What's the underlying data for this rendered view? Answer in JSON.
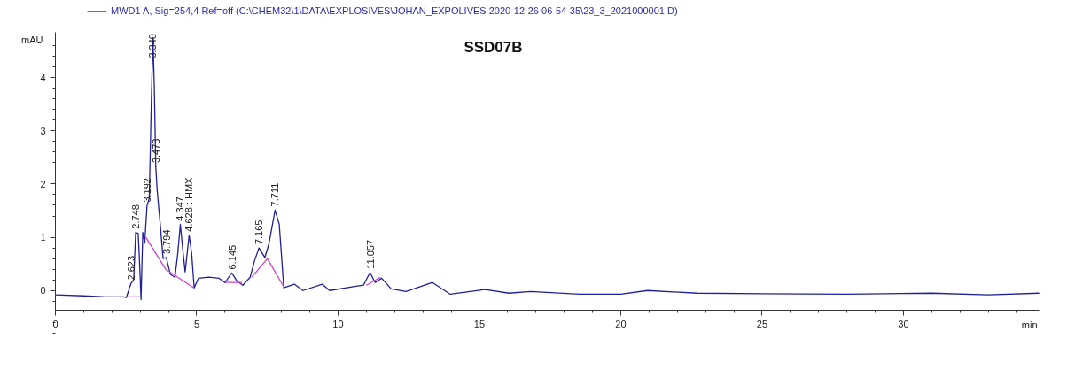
{
  "chart_data": {
    "type": "line",
    "title": "SSD07B",
    "xlabel": "min",
    "ylabel": "mAU",
    "legend": "top",
    "grid": false,
    "marker": "none",
    "line_style": "solid",
    "xlim": [
      0,
      34.8
    ],
    "ylim": [
      -0.37,
      4.85
    ],
    "xticks": [
      0,
      5,
      10,
      15,
      20,
      25,
      30
    ],
    "yticks": [
      0,
      1,
      2,
      3,
      4
    ],
    "series": [
      {
        "name": "MWD1 A, Sig=254,4 Ref=off (C:\\CHEM32\\1\\DATA\\EXPLOSIVES\\JOHAN_EXPOLIVES 2020-12-26 06-54-35\\23_3_2021000001.D)",
        "color": "#1f1f9c",
        "x": [
          0,
          1,
          1.78,
          2.4,
          2.51,
          2.67,
          2.77,
          2.84,
          2.93,
          2.98,
          3.03,
          3.09,
          3.16,
          3.24,
          3.32,
          3.39,
          3.45,
          3.5,
          3.55,
          3.6,
          3.71,
          3.81,
          3.92,
          4.07,
          4.23,
          4.33,
          4.42,
          4.51,
          4.59,
          4.73,
          4.82,
          4.91,
          5.06,
          5.43,
          5.79,
          6.0,
          6.24,
          6.42,
          6.63,
          6.89,
          7.04,
          7.2,
          7.41,
          7.56,
          7.77,
          7.92,
          8.08,
          8.45,
          8.76,
          9.44,
          9.7,
          10.64,
          10.9,
          11.13,
          11.31,
          11.54,
          11.88,
          12.4,
          13.34,
          13.97,
          15.2,
          16.05,
          16.8,
          18.55,
          20.0,
          20.95,
          22.7,
          25,
          28,
          31,
          33,
          34.8
        ],
        "values": [
          -0.08,
          -0.1,
          -0.12,
          -0.12,
          -0.13,
          0.13,
          0.2,
          1.09,
          1.07,
          0.5,
          -0.17,
          1.09,
          0.89,
          1.59,
          1.73,
          3.46,
          4.75,
          3.8,
          2.33,
          1.88,
          1.24,
          0.6,
          0.62,
          0.3,
          0.25,
          0.7,
          1.24,
          0.75,
          0.35,
          1.04,
          0.7,
          0.05,
          0.23,
          0.25,
          0.23,
          0.15,
          0.33,
          0.18,
          0.1,
          0.25,
          0.55,
          0.8,
          0.62,
          0.89,
          1.51,
          1.24,
          0.05,
          0.12,
          0.0,
          0.12,
          0.0,
          0.08,
          0.1,
          0.34,
          0.15,
          0.23,
          0.03,
          -0.02,
          0.15,
          -0.07,
          0.02,
          -0.05,
          -0.02,
          -0.07,
          -0.07,
          0.0,
          -0.05,
          -0.06,
          -0.07,
          -0.05,
          -0.08,
          -0.05
        ]
      },
      {
        "color": "#d040d0",
        "x": [
          2.55,
          3.0,
          null,
          3.2,
          3.9,
          4.9,
          null,
          6.0,
          6.6,
          null,
          6.95,
          7.5,
          8.1,
          null,
          11.0,
          11.5
        ],
        "values": [
          -0.12,
          -0.12,
          null,
          1.0,
          0.4,
          0.05,
          null,
          0.15,
          0.15,
          null,
          0.25,
          0.6,
          0.05,
          null,
          0.1,
          0.25
        ]
      }
    ],
    "annotations": [
      {
        "text": "2.623",
        "x": 2.67,
        "y": 0.13
      },
      {
        "text": "2.748",
        "x": 2.84,
        "y": 1.09
      },
      {
        "text": "3.192",
        "x": 3.24,
        "y": 1.59
      },
      {
        "text": "3.340",
        "x": 3.43,
        "y": 4.3
      },
      {
        "text": "3.473",
        "x": 3.55,
        "y": 2.33
      },
      {
        "text": "3.794",
        "x": 3.92,
        "y": 0.62
      },
      {
        "text": "4.347",
        "x": 4.42,
        "y": 1.24
      },
      {
        "text": "4.628 : HMX",
        "x": 4.73,
        "y": 1.04
      },
      {
        "text": "6.145",
        "x": 6.24,
        "y": 0.33
      },
      {
        "text": "7.165",
        "x": 7.2,
        "y": 0.8
      },
      {
        "text": "7.711",
        "x": 7.77,
        "y": 1.51
      },
      {
        "text": "11.057",
        "x": 11.13,
        "y": 0.34
      }
    ]
  }
}
